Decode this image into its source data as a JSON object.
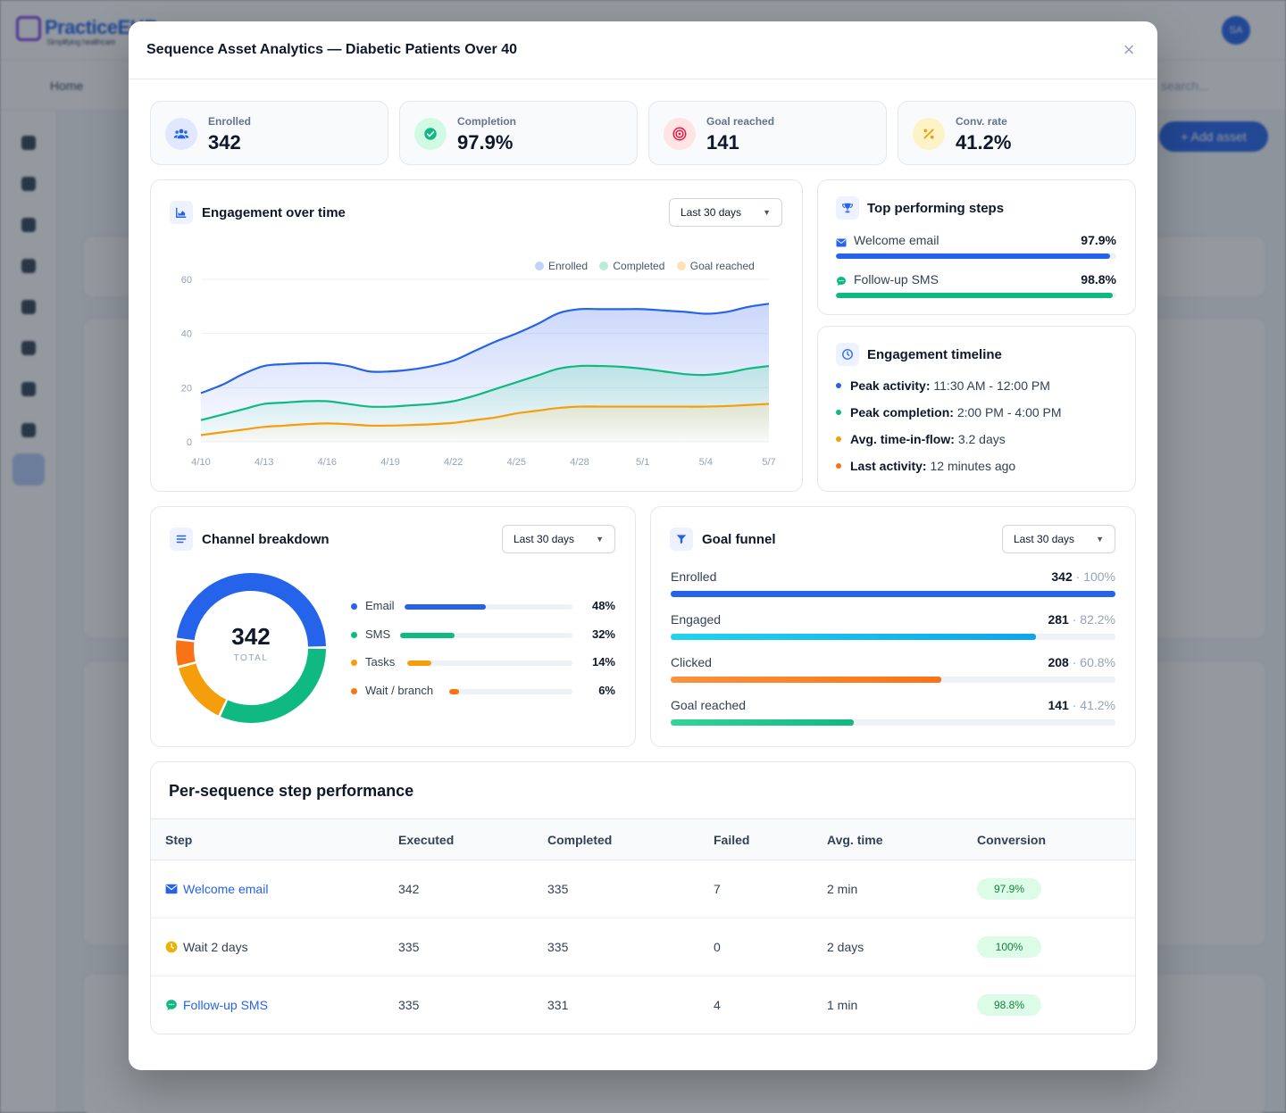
{
  "background": {
    "logo": "PracticeEHR",
    "logo_tagline": "Simplifying healthcare",
    "avatar": "SA",
    "nav": [
      "Home"
    ],
    "search_placeholder": "search...",
    "add_button": "+ Add asset"
  },
  "modal": {
    "title": "Sequence Asset Analytics — Diabetic Patients Over 40",
    "close_label": "×"
  },
  "kpis": [
    {
      "label": "Enrolled",
      "value": "342",
      "icon": "users-icon",
      "color": "#2563eb",
      "bg": "#e0e7ff"
    },
    {
      "label": "Completion",
      "value": "97.9%",
      "icon": "check-circle-icon",
      "color": "#10b981",
      "bg": "#d1fae5"
    },
    {
      "label": "Goal reached",
      "value": "141",
      "icon": "target-icon",
      "color": "#e11d48",
      "bg": "#ffe4e6"
    },
    {
      "label": "Conv. rate",
      "value": "41.2%",
      "icon": "percent-icon",
      "color": "#f59e0b",
      "bg": "#fef3c7"
    }
  ],
  "engagement": {
    "title": "Engagement over time",
    "range": "Last 30 days",
    "chart_data": {
      "type": "area",
      "x": [
        "4/10",
        "4/11",
        "4/12",
        "4/13",
        "4/14",
        "4/15",
        "4/16",
        "4/17",
        "4/18",
        "4/19",
        "4/20",
        "4/21",
        "4/22",
        "4/23",
        "4/24",
        "4/25",
        "4/26",
        "4/27",
        "4/28",
        "4/29",
        "4/30",
        "5/1",
        "5/2",
        "5/3",
        "5/4",
        "5/5",
        "5/6",
        "5/7"
      ],
      "x_ticks": [
        "4/10",
        "4/13",
        "4/16",
        "4/19",
        "4/22",
        "4/25",
        "4/28",
        "5/1",
        "5/4",
        "5/7"
      ],
      "y_ticks": [
        0,
        20,
        40,
        60
      ],
      "ylim": [
        0,
        60
      ],
      "series": [
        {
          "name": "Enrolled",
          "color": "#2563eb",
          "values": [
            18,
            21,
            25,
            28,
            28.7,
            29,
            29,
            28,
            26,
            26,
            26.7,
            28,
            30,
            33.5,
            37,
            40,
            43.5,
            47.5,
            49,
            49,
            49,
            49,
            48.5,
            48,
            47.3,
            48,
            49.8,
            51
          ]
        },
        {
          "name": "Completed",
          "color": "#10b981",
          "values": [
            8,
            10,
            12,
            14,
            14.5,
            15,
            15,
            14,
            13,
            13,
            13.5,
            14,
            15,
            17,
            19.5,
            22,
            24.5,
            27,
            28,
            28,
            27.7,
            27,
            26,
            25,
            24.7,
            25.5,
            27,
            28
          ]
        },
        {
          "name": "Goal reached",
          "color": "#f59e0b",
          "values": [
            2.5,
            3.5,
            4.5,
            5.5,
            6,
            6.5,
            6.8,
            6.5,
            6,
            6,
            6.2,
            6.5,
            7,
            8,
            9,
            10.5,
            11.5,
            12.5,
            13,
            13,
            13,
            13,
            13,
            13,
            13,
            13.2,
            13.6,
            14
          ]
        }
      ],
      "legend": "top-right",
      "grid": true
    }
  },
  "top_steps": {
    "title": "Top performing steps",
    "items": [
      {
        "name": "Welcome email",
        "pct": "97.9%",
        "fill": 0.979,
        "color": "#2563eb",
        "icon": "mail-icon"
      },
      {
        "name": "Follow-up SMS",
        "pct": "98.8%",
        "fill": 0.988,
        "color": "#10b981",
        "icon": "chat-icon"
      }
    ]
  },
  "timeline": {
    "title": "Engagement timeline",
    "items": [
      {
        "label": "Peak activity:",
        "value": "11:30 AM - 12:00 PM",
        "color": "#2563eb"
      },
      {
        "label": "Peak completion:",
        "value": "2:00 PM - 4:00 PM",
        "color": "#10b981"
      },
      {
        "label": "Avg. time-in-flow:",
        "value": "3.2 days",
        "color": "#f59e0b"
      },
      {
        "label": "Last activity:",
        "value": "12 minutes ago",
        "color": "#f97316"
      }
    ]
  },
  "channel": {
    "title": "Channel breakdown",
    "range": "Last 30 days",
    "total": "342",
    "total_label": "TOTAL",
    "chart_data": {
      "type": "pie",
      "slices": [
        {
          "name": "Email",
          "pct": "48%",
          "value": 48,
          "color": "#2563eb"
        },
        {
          "name": "SMS",
          "pct": "32%",
          "value": 32,
          "color": "#10b981"
        },
        {
          "name": "Tasks",
          "pct": "14%",
          "value": 14,
          "color": "#f59e0b"
        },
        {
          "name": "Wait / branch",
          "pct": "6%",
          "value": 6,
          "color": "#f97316"
        }
      ]
    }
  },
  "funnel": {
    "title": "Goal funnel",
    "range": "Last 30 days",
    "stages": [
      {
        "name": "Enrolled",
        "count": "342",
        "pct": "100%",
        "fill": 1.0,
        "color": "#2563eb"
      },
      {
        "name": "Engaged",
        "count": "281",
        "pct": "82.2%",
        "fill": 0.822,
        "color": "#0ea5e9"
      },
      {
        "name": "Clicked",
        "count": "208",
        "pct": "60.8%",
        "fill": 0.608,
        "color": "#f97316"
      },
      {
        "name": "Goal reached",
        "count": "141",
        "pct": "41.2%",
        "fill": 0.412,
        "color": "#10b981"
      }
    ]
  },
  "steps_table": {
    "title": "Per-sequence step performance",
    "columns": [
      "Step",
      "Executed",
      "Completed",
      "Failed",
      "Avg. time",
      "Conversion"
    ],
    "rows": [
      {
        "step": "Welcome email",
        "icon": "mail-icon",
        "executed": "342",
        "completed": "335",
        "failed": "7",
        "avg_time": "2 min",
        "conversion": "97.9%"
      },
      {
        "step": "Wait 2 days",
        "icon": "clock-icon",
        "executed": "335",
        "completed": "335",
        "failed": "0",
        "avg_time": "2 days",
        "conversion": "100%"
      },
      {
        "step": "Follow-up SMS",
        "icon": "chat-icon",
        "executed": "335",
        "completed": "331",
        "failed": "4",
        "avg_time": "1 min",
        "conversion": "98.8%"
      }
    ]
  }
}
